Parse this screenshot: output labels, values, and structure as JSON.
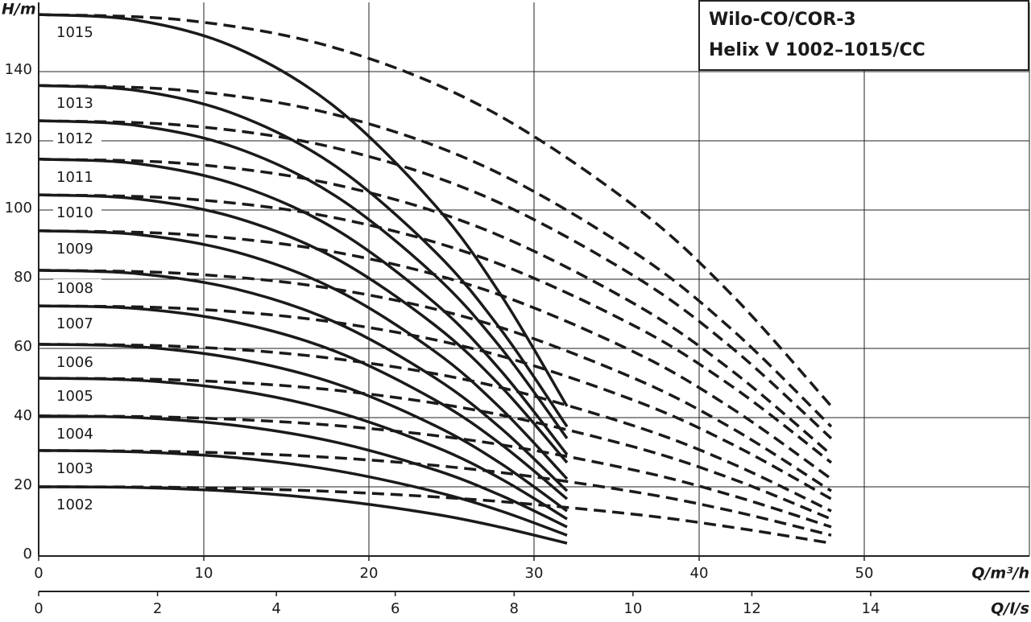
{
  "chart_data": {
    "type": "line",
    "title": [
      "Wilo-CO/COR-3",
      "Helix V 1002–1015/CC"
    ],
    "y_label": "H/m",
    "x_label": "Q/m³/h",
    "x2_label": "Q/l/s",
    "xlim": [
      0,
      60
    ],
    "xticks": [
      0,
      10,
      20,
      30,
      40,
      50
    ],
    "x2lim": [
      0,
      16.67
    ],
    "x2ticks": [
      0,
      2,
      4,
      6,
      8,
      10,
      12,
      14
    ],
    "ylim": [
      0,
      160
    ],
    "yticks": [
      0,
      20,
      40,
      60,
      80,
      100,
      120,
      140
    ],
    "grid": true,
    "color": "#1a1a1a",
    "x_single": [
      0,
      6,
      12,
      18,
      24,
      28,
      32
    ],
    "x_parallel": [
      0,
      9,
      18,
      27,
      36,
      42,
      48
    ],
    "series": [
      {
        "name": "1015",
        "values": [
          156.5,
          154.8,
          146.8,
          129.6,
          101.4,
          75.4,
          43.3
        ]
      },
      {
        "name": "1013",
        "values": [
          136,
          134.5,
          127.5,
          112.6,
          88.0,
          65.4,
          37.4
        ]
      },
      {
        "name": "1012",
        "values": [
          125.8,
          124.4,
          117.9,
          104.0,
          81.1,
          60.1,
          34
        ]
      },
      {
        "name": "1011",
        "values": [
          114.7,
          113.4,
          107.3,
          94.4,
          73.1,
          53.5,
          29.3
        ]
      },
      {
        "name": "1010",
        "values": [
          104.4,
          103.2,
          97.7,
          86.0,
          66.7,
          49.0,
          27
        ]
      },
      {
        "name": "1009",
        "values": [
          94,
          92.9,
          87.8,
          77.0,
          59.1,
          42.6,
          22.3
        ]
      },
      {
        "name": "1008",
        "values": [
          82.6,
          81.6,
          77.1,
          67.5,
          51.5,
          36.9,
          18.8
        ]
      },
      {
        "name": "1007",
        "values": [
          72.3,
          71.5,
          67.5,
          59.1,
          45.1,
          32.3,
          16.5
        ]
      },
      {
        "name": "1006",
        "values": [
          61.2,
          60.5,
          57.0,
          49.8,
          37.7,
          26.7,
          13
        ]
      },
      {
        "name": "1005",
        "values": [
          51.4,
          50.8,
          47.9,
          41.7,
          31.6,
          22.3,
          10.7
        ]
      },
      {
        "name": "1004",
        "values": [
          40.5,
          40.0,
          37.7,
          32.9,
          24.9,
          17.5,
          8.4
        ]
      },
      {
        "name": "1003",
        "values": [
          30.5,
          30.1,
          28.4,
          24.7,
          18.6,
          13.0,
          6.0
        ]
      },
      {
        "name": "1002",
        "values": [
          20,
          19.8,
          18.6,
          16.1,
          12.1,
          8.3,
          3.7
        ]
      }
    ]
  }
}
